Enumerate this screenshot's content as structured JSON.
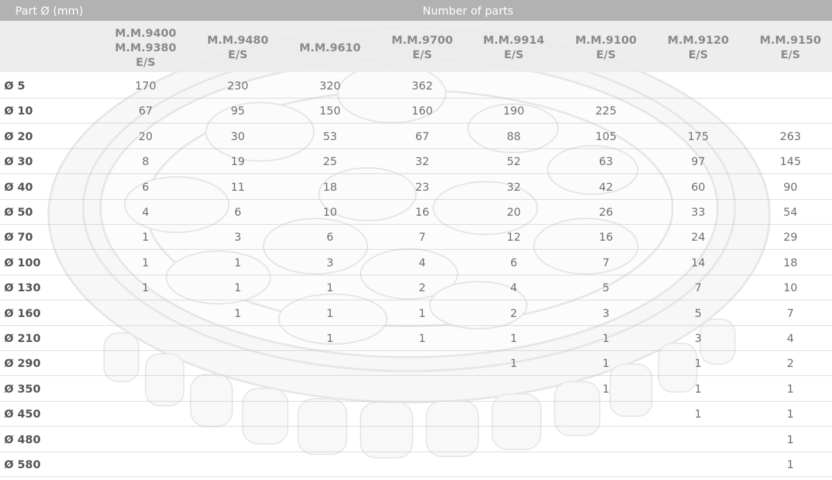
{
  "header": {
    "part_label": "Part Ø (mm)",
    "number_label": "Number of parts"
  },
  "columns": [
    "M.M.9400\nM.M.9380\nE/S",
    "M.M.9480\nE/S",
    "M.M.9610",
    "M.M.9700\nE/S",
    "M.M.9914\nE/S",
    "M.M.9100\nE/S",
    "M.M.9120\nE/S",
    "M.M.9150\nE/S"
  ],
  "rows": [
    {
      "label": "Ø 5",
      "values": [
        "170",
        "230",
        "320",
        "362",
        "",
        "",
        "",
        ""
      ]
    },
    {
      "label": "Ø 10",
      "values": [
        "67",
        "95",
        "150",
        "160",
        "190",
        "225",
        "",
        ""
      ]
    },
    {
      "label": "Ø 20",
      "values": [
        "20",
        "30",
        "53",
        "67",
        "88",
        "105",
        "175",
        "263"
      ]
    },
    {
      "label": "Ø 30",
      "values": [
        "8",
        "19",
        "25",
        "32",
        "52",
        "63",
        "97",
        "145"
      ]
    },
    {
      "label": "Ø 40",
      "values": [
        "6",
        "11",
        "18",
        "23",
        "32",
        "42",
        "60",
        "90"
      ]
    },
    {
      "label": "Ø 50",
      "values": [
        "4",
        "6",
        "10",
        "16",
        "20",
        "26",
        "33",
        "54"
      ]
    },
    {
      "label": "Ø 70",
      "values": [
        "1",
        "3",
        "6",
        "7",
        "12",
        "16",
        "24",
        "29"
      ]
    },
    {
      "label": "Ø 100",
      "values": [
        "1",
        "1",
        "3",
        "4",
        "6",
        "7",
        "14",
        "18"
      ]
    },
    {
      "label": "Ø 130",
      "values": [
        "1",
        "1",
        "1",
        "2",
        "4",
        "5",
        "7",
        "10"
      ]
    },
    {
      "label": "Ø 160",
      "values": [
        "",
        "1",
        "1",
        "1",
        "2",
        "3",
        "5",
        "7"
      ]
    },
    {
      "label": "Ø 210",
      "values": [
        "",
        "",
        "1",
        "1",
        "1",
        "1",
        "3",
        "4"
      ]
    },
    {
      "label": "Ø 290",
      "values": [
        "",
        "",
        "",
        "",
        "1",
        "1",
        "1",
        "2"
      ]
    },
    {
      "label": "Ø 350",
      "values": [
        "",
        "",
        "",
        "",
        "",
        "1",
        "1",
        "1"
      ]
    },
    {
      "label": "Ø 450",
      "values": [
        "",
        "",
        "",
        "",
        "",
        "",
        "1",
        "1"
      ]
    },
    {
      "label": "Ø 480",
      "values": [
        "",
        "",
        "",
        "",
        "",
        "",
        "",
        "1"
      ]
    },
    {
      "label": "Ø 580",
      "values": [
        "",
        "",
        "",
        "",
        "",
        "",
        "",
        "1"
      ]
    }
  ]
}
